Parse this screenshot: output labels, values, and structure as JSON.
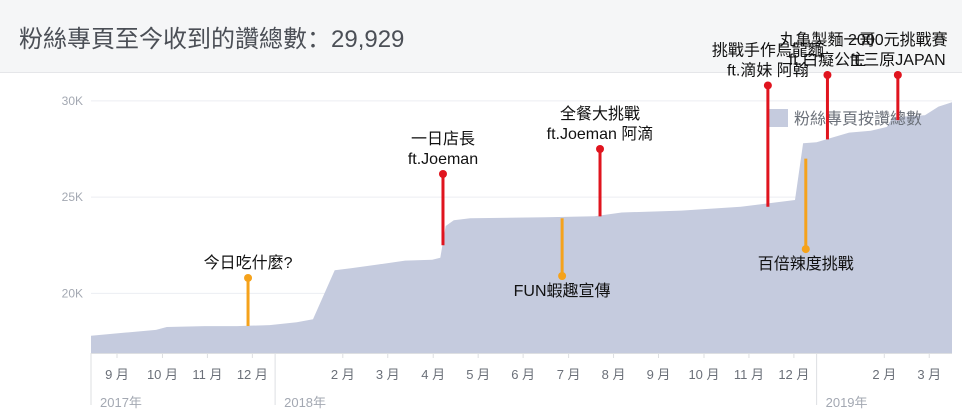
{
  "header": {
    "title": "粉絲專頁至今收到的讚總數：29,929"
  },
  "chart_data": {
    "type": "area",
    "title": "粉絲專頁至今收到的讚總數：29,929",
    "xlabel": "",
    "ylabel": "",
    "ylim": [
      16900,
      31500
    ],
    "y_ticks": [
      {
        "label": "20K",
        "value": 20000
      },
      {
        "label": "25K",
        "value": 25000
      },
      {
        "label": "30K",
        "value": 30000
      }
    ],
    "x_range": [
      2017.66,
      2019.25
    ],
    "x_ticks": [
      {
        "label": "9 月",
        "x": 2017.708
      },
      {
        "label": "10 月",
        "x": 2017.792
      },
      {
        "label": "11 月",
        "x": 2017.875
      },
      {
        "label": "12 月",
        "x": 2017.958
      },
      {
        "label": "2 月",
        "x": 2018.125
      },
      {
        "label": "3 月",
        "x": 2018.208
      },
      {
        "label": "4 月",
        "x": 2018.292
      },
      {
        "label": "5 月",
        "x": 2018.375
      },
      {
        "label": "6 月",
        "x": 2018.458
      },
      {
        "label": "7 月",
        "x": 2018.542
      },
      {
        "label": "8 月",
        "x": 2018.625
      },
      {
        "label": "9 月",
        "x": 2018.708
      },
      {
        "label": "10 月",
        "x": 2018.792
      },
      {
        "label": "11 月",
        "x": 2018.875
      },
      {
        "label": "12 月",
        "x": 2018.958
      },
      {
        "label": "2 月",
        "x": 2019.125
      },
      {
        "label": "3 月",
        "x": 2019.208
      }
    ],
    "year_ticks": [
      {
        "label": "2017年",
        "x": 2017.66
      },
      {
        "label": "2018年",
        "x": 2018.0
      },
      {
        "label": "2019年",
        "x": 2019.0
      }
    ],
    "legend": {
      "position": "top-right",
      "label": "粉絲專頁按讚總數",
      "color": "#c5cbde"
    },
    "series": [
      {
        "name": "粉絲專頁按讚總數",
        "color": "#c5cbde",
        "points": [
          [
            2017.66,
            17800
          ],
          [
            2017.72,
            17950
          ],
          [
            2017.78,
            18100
          ],
          [
            2017.8,
            18250
          ],
          [
            2017.87,
            18300
          ],
          [
            2017.93,
            18300
          ],
          [
            2017.99,
            18350
          ],
          [
            2018.04,
            18500
          ],
          [
            2018.07,
            18650
          ],
          [
            2018.11,
            21200
          ],
          [
            2018.14,
            21300
          ],
          [
            2018.19,
            21500
          ],
          [
            2018.24,
            21700
          ],
          [
            2018.29,
            21750
          ],
          [
            2018.305,
            21850
          ],
          [
            2018.315,
            23500
          ],
          [
            2018.33,
            23800
          ],
          [
            2018.36,
            23900
          ],
          [
            2018.5,
            23950
          ],
          [
            2018.59,
            24000
          ],
          [
            2018.64,
            24200
          ],
          [
            2018.75,
            24300
          ],
          [
            2018.86,
            24500
          ],
          [
            2018.96,
            24850
          ],
          [
            2018.975,
            27800
          ],
          [
            2019.0,
            27850
          ],
          [
            2019.03,
            28100
          ],
          [
            2019.06,
            28350
          ],
          [
            2019.1,
            28450
          ],
          [
            2019.13,
            28650
          ],
          [
            2019.14,
            29150
          ],
          [
            2019.2,
            29250
          ],
          [
            2019.225,
            29700
          ],
          [
            2019.25,
            29929
          ]
        ]
      }
    ],
    "annotations": [
      {
        "lines": [
          "今日吃什麼?"
        ],
        "x": 2017.95,
        "y_low": 18300,
        "y_high": 20800,
        "color": "#f5a21b",
        "label_side": "above"
      },
      {
        "lines": [
          "一日店長",
          "ft.Joeman"
        ],
        "x": 2018.31,
        "y_low": 22500,
        "y_high": 26200,
        "color": "#e0141e",
        "label_side": "above"
      },
      {
        "lines": [
          "FUN蝦趣宣傳"
        ],
        "x": 2018.53,
        "y_low": 23900,
        "y_high": 20900,
        "color": "#f5a21b",
        "label_side": "below"
      },
      {
        "lines": [
          "全餐大挑戰",
          "ft.Joeman 阿滴"
        ],
        "x": 2018.6,
        "y_low": 24000,
        "y_high": 27500,
        "color": "#e0141e",
        "label_side": "above"
      },
      {
        "lines": [
          "挑戰手作烏龍麵",
          "ft.滴妹 阿翰"
        ],
        "x": 2018.91,
        "y_low": 24500,
        "y_high": 30800,
        "color": "#e0141e",
        "label_side": "above"
      },
      {
        "lines": [
          "百倍辣度挑戰"
        ],
        "x": 2018.98,
        "y_low": 27000,
        "y_high": 22300,
        "color": "#f5a21b",
        "label_side": "below"
      },
      {
        "lines": [
          "丸亀製麵一哥",
          "ft.白癡公主"
        ],
        "x": 2019.02,
        "y_low": 28000,
        "y_high": 35500,
        "color": "#e0141e",
        "label_side": "above"
      },
      {
        "lines": [
          "2000元挑戰賽",
          "ft.三原JAPAN"
        ],
        "x": 2019.15,
        "y_low": 29000,
        "y_high": 35500,
        "color": "#e0141e",
        "label_side": "above"
      }
    ]
  }
}
